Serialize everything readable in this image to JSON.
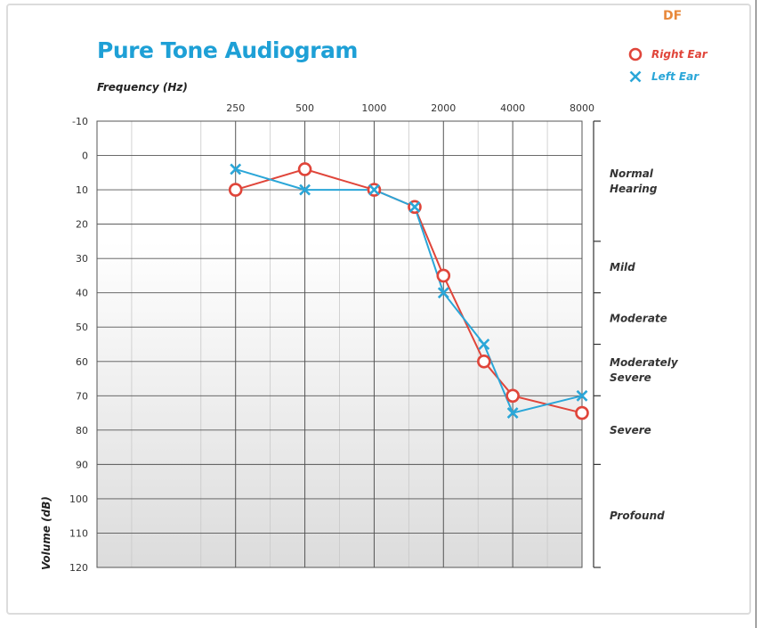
{
  "watermark": "DF",
  "chart_data": {
    "type": "line",
    "title": "Pure Tone Audiogram",
    "xlabel": "Frequency (Hz)",
    "ylabel": "Volume (dB)",
    "x_ticks": [
      "250",
      "500",
      "1000",
      "2000",
      "4000",
      "8000"
    ],
    "y_ticks": [
      -10,
      0,
      10,
      20,
      30,
      40,
      50,
      60,
      70,
      80,
      90,
      100,
      110,
      120
    ],
    "ylim": [
      -10,
      120
    ],
    "y_inverted": true,
    "x_scale": "log2",
    "xlim_octaves": [
      -1,
      6
    ],
    "grid": true,
    "legend_position": "top-right",
    "series": [
      {
        "name": "Right Ear",
        "marker": "circle",
        "color": "#e0453a",
        "points": [
          {
            "x": 250,
            "y": 10
          },
          {
            "x": 500,
            "y": 4
          },
          {
            "x": 1000,
            "y": 10
          },
          {
            "x": 1500,
            "y": 15
          },
          {
            "x": 2000,
            "y": 35
          },
          {
            "x": 3000,
            "y": 60
          },
          {
            "x": 4000,
            "y": 70
          },
          {
            "x": 8000,
            "y": 75
          }
        ]
      },
      {
        "name": "Left Ear",
        "marker": "cross",
        "color": "#2aa6d8",
        "points": [
          {
            "x": 250,
            "y": 4
          },
          {
            "x": 500,
            "y": 10
          },
          {
            "x": 1000,
            "y": 10
          },
          {
            "x": 1500,
            "y": 15
          },
          {
            "x": 2000,
            "y": 40
          },
          {
            "x": 3000,
            "y": 55
          },
          {
            "x": 4000,
            "y": 75
          },
          {
            "x": 8000,
            "y": 70
          }
        ]
      }
    ],
    "hearing_categories": [
      {
        "lines": [
          "Normal",
          "Hearing"
        ],
        "from": -10,
        "to": 25
      },
      {
        "lines": [
          "Mild"
        ],
        "from": 25,
        "to": 40
      },
      {
        "lines": [
          "Moderate"
        ],
        "from": 40,
        "to": 55
      },
      {
        "lines": [
          "Moderately",
          "Severe"
        ],
        "from": 55,
        "to": 70
      },
      {
        "lines": [
          "Severe"
        ],
        "from": 70,
        "to": 90
      },
      {
        "lines": [
          "Profound"
        ],
        "from": 90,
        "to": 120
      }
    ]
  }
}
